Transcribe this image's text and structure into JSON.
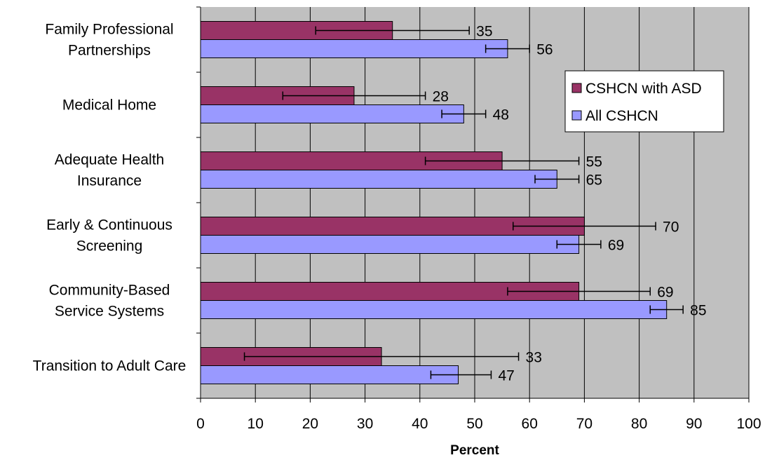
{
  "chart_data": {
    "type": "bar",
    "orientation": "horizontal",
    "title": "",
    "xlabel": "Percent",
    "ylabel": "",
    "xlim": [
      0,
      100
    ],
    "x_ticks": [
      0,
      10,
      20,
      30,
      40,
      50,
      60,
      70,
      80,
      90,
      100
    ],
    "grid": "vertical",
    "legend_position": "top-right",
    "categories": [
      [
        "Family Professional",
        "Partnerships"
      ],
      [
        "Medical Home"
      ],
      [
        "Adequate Health",
        "Insurance"
      ],
      [
        "Early & Continuous",
        "Screening"
      ],
      [
        "Community-Based",
        "Service Systems"
      ],
      [
        "Transition to Adult Care"
      ]
    ],
    "series": [
      {
        "name": "CSHCN with ASD",
        "color": "#993366",
        "values": [
          35,
          28,
          55,
          70,
          69,
          33
        ],
        "error_low": [
          21,
          15,
          41,
          57,
          56,
          8
        ],
        "error_high": [
          49,
          41,
          69,
          83,
          82,
          58
        ]
      },
      {
        "name": "All CSHCN",
        "color": "#9999ff",
        "values": [
          56,
          48,
          65,
          69,
          85,
          47
        ],
        "error_low": [
          52,
          44,
          61,
          65,
          82,
          42
        ],
        "error_high": [
          60,
          52,
          69,
          73,
          88,
          53
        ]
      }
    ],
    "plot_background": "#c0c0c0"
  }
}
